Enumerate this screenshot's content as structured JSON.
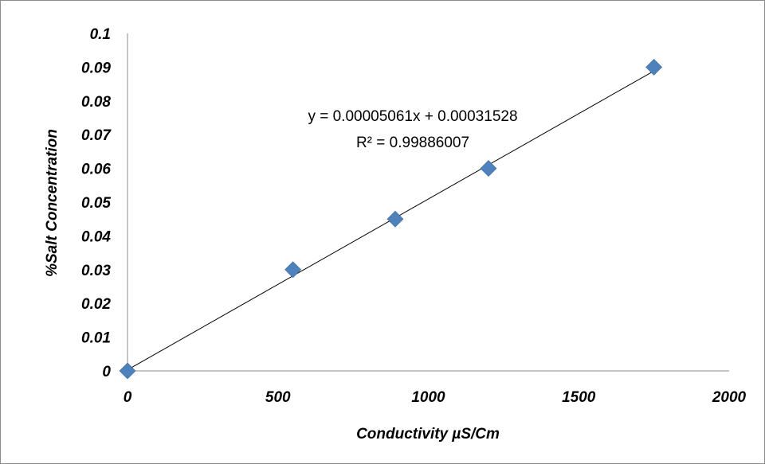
{
  "chart_data": {
    "type": "scatter",
    "xlabel": "Conductivity µS/Cm",
    "ylabel": "%Salt Concentration",
    "xlim": [
      0,
      2000
    ],
    "ylim": [
      0,
      0.1
    ],
    "x_ticks": [
      "0",
      "500",
      "1000",
      "1500",
      "2000"
    ],
    "y_ticks": [
      "0",
      "0.01",
      "0.02",
      "0.03",
      "0.04",
      "0.05",
      "0.06",
      "0.07",
      "0.08",
      "0.09",
      "0.1"
    ],
    "grid": false,
    "series": [
      {
        "color": "#4f81bd",
        "marker": "diamond",
        "points": [
          {
            "x": 0,
            "y": 0
          },
          {
            "x": 550,
            "y": 0.03
          },
          {
            "x": 890,
            "y": 0.045
          },
          {
            "x": 1200,
            "y": 0.06
          },
          {
            "x": 1750,
            "y": 0.09
          }
        ]
      }
    ],
    "trendline": {
      "type": "linear",
      "slope": 5.061e-05,
      "intercept": 0.00031528,
      "color": "#000000",
      "equation": "y = 0.00005061x + 0.00031528",
      "r_squared": "R² = 0.99886007"
    }
  }
}
